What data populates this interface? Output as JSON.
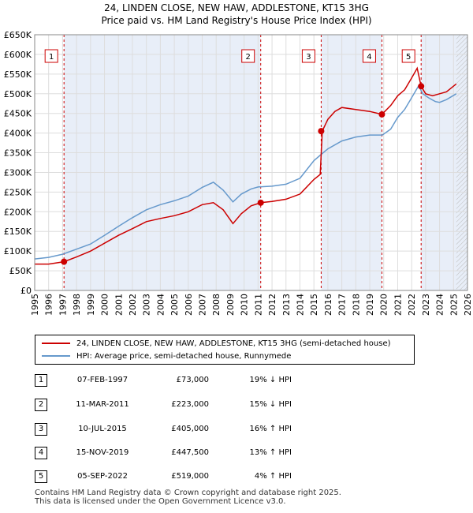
{
  "chart_data": {
    "type": "line",
    "title": "24, LINDEN CLOSE, NEW HAW, ADDLESTONE, KT15 3HG",
    "subtitle": "Price paid vs. HM Land Registry's House Price Index (HPI)",
    "xlim": [
      1995,
      2026
    ],
    "ylim": [
      0,
      650000
    ],
    "x_ticks": [
      1995,
      1996,
      1997,
      1998,
      1999,
      2000,
      2001,
      2002,
      2003,
      2004,
      2005,
      2006,
      2007,
      2008,
      2009,
      2010,
      2011,
      2012,
      2013,
      2014,
      2015,
      2016,
      2017,
      2018,
      2019,
      2020,
      2021,
      2022,
      2023,
      2024,
      2025,
      2026
    ],
    "y_ticks": [
      {
        "value": 0,
        "label": "£0"
      },
      {
        "value": 50000,
        "label": "£50K"
      },
      {
        "value": 100000,
        "label": "£100K"
      },
      {
        "value": 150000,
        "label": "£150K"
      },
      {
        "value": 200000,
        "label": "£200K"
      },
      {
        "value": 250000,
        "label": "£250K"
      },
      {
        "value": 300000,
        "label": "£300K"
      },
      {
        "value": 350000,
        "label": "£350K"
      },
      {
        "value": 400000,
        "label": "£400K"
      },
      {
        "value": 450000,
        "label": "£450K"
      },
      {
        "value": 500000,
        "label": "£500K"
      },
      {
        "value": 550000,
        "label": "£550K"
      },
      {
        "value": 600000,
        "label": "£600K"
      },
      {
        "value": 650000,
        "label": "£650K"
      }
    ],
    "data_end_x": 2025.2,
    "series": [
      {
        "name": "24, LINDEN CLOSE, NEW HAW, ADDLESTONE, KT15 3HG (semi-detached house)",
        "color": "#cc0000",
        "x": [
          1995,
          1996,
          1997.1,
          1998,
          1999,
          2000,
          2001,
          2002,
          2003,
          2004,
          2005,
          2006,
          2007,
          2007.8,
          2008.5,
          2009.2,
          2009.8,
          2010.5,
          2011.2,
          2012,
          2013,
          2014,
          2015,
          2015.45,
          2015.6,
          2016,
          2016.5,
          2017,
          2018,
          2019,
          2019.87,
          2020.5,
          2021,
          2021.5,
          2022,
          2022.4,
          2022.68,
          2023,
          2023.5,
          2024,
          2024.5,
          2025.2
        ],
        "y": [
          67000,
          67000,
          73000,
          85000,
          100000,
          120000,
          140000,
          157000,
          175000,
          183000,
          190000,
          200000,
          218000,
          223000,
          205000,
          170000,
          195000,
          215000,
          223000,
          226000,
          232000,
          245000,
          282000,
          295000,
          405000,
          435000,
          455000,
          465000,
          460000,
          455000,
          447500,
          470000,
          495000,
          510000,
          540000,
          565000,
          519000,
          500000,
          495000,
          500000,
          505000,
          525000
        ]
      },
      {
        "name": "HPI: Average price, semi-detached house, Runnymede",
        "color": "#6699cc",
        "x": [
          1995,
          1996,
          1997,
          1998,
          1999,
          2000,
          2001,
          2002,
          2003,
          2004,
          2005,
          2006,
          2007,
          2007.8,
          2008.5,
          2009.2,
          2009.8,
          2010.5,
          2011,
          2012,
          2013,
          2014,
          2015,
          2015.5,
          2016,
          2017,
          2018,
          2019,
          2019.9,
          2020.5,
          2021,
          2021.5,
          2022,
          2022.5,
          2022.8,
          2023.2,
          2023.7,
          2024,
          2024.5,
          2025.2
        ],
        "y": [
          80000,
          84000,
          92000,
          105000,
          118000,
          140000,
          163000,
          185000,
          205000,
          218000,
          228000,
          240000,
          262000,
          275000,
          255000,
          225000,
          245000,
          258000,
          263000,
          265000,
          270000,
          285000,
          330000,
          345000,
          360000,
          380000,
          390000,
          395000,
          395000,
          410000,
          440000,
          460000,
          490000,
          520000,
          500000,
          490000,
          480000,
          478000,
          485000,
          500000
        ]
      }
    ],
    "sales": [
      {
        "num": "1",
        "x": 1997.1,
        "y": 73000,
        "date": "07-FEB-1997",
        "price": "£73,000",
        "hpi": "19% ↓ HPI"
      },
      {
        "num": "2",
        "x": 2011.19,
        "y": 223000,
        "date": "11-MAR-2011",
        "price": "£223,000",
        "hpi": "15% ↓ HPI"
      },
      {
        "num": "3",
        "x": 2015.52,
        "y": 405000,
        "date": "10-JUL-2015",
        "price": "£405,000",
        "hpi": "16% ↑ HPI"
      },
      {
        "num": "4",
        "x": 2019.87,
        "y": 447500,
        "date": "15-NOV-2019",
        "price": "£447,500",
        "hpi": "13% ↑ HPI"
      },
      {
        "num": "5",
        "x": 2022.68,
        "y": 519000,
        "date": "05-SEP-2022",
        "price": "£519,000",
        "hpi": "4% ↑ HPI"
      }
    ]
  },
  "legend": {
    "property_label": "24, LINDEN CLOSE, NEW HAW, ADDLESTONE, KT15 3HG (semi-detached house)",
    "hpi_label": "HPI: Average price, semi-detached house, Runnymede",
    "property_color": "#cc0000",
    "hpi_color": "#6699cc"
  },
  "footer": {
    "line1": "Contains HM Land Registry data © Crown copyright and database right 2025.",
    "line2": "This data is licensed under the Open Government Licence v3.0."
  }
}
